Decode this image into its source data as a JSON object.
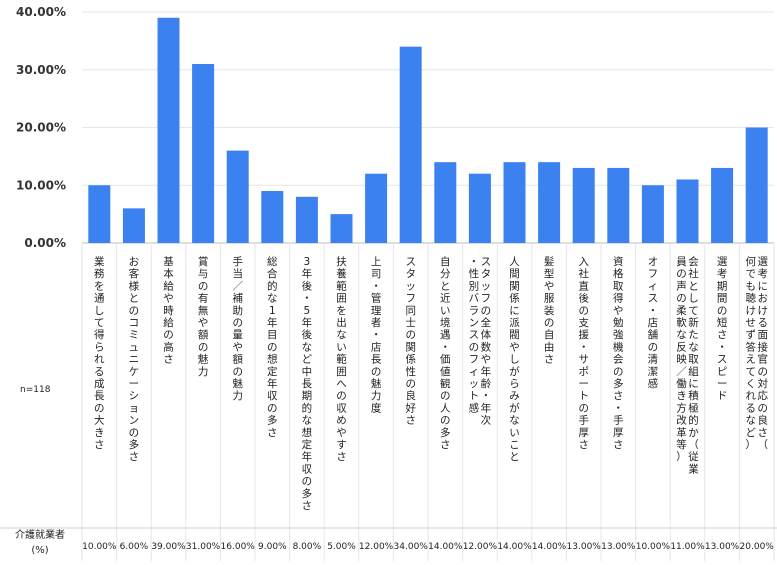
{
  "chart_data": {
    "type": "bar",
    "categories": [
      "業務を通して得られる成長の大きさ",
      "お客様とのコミュニケーションの多さ",
      "基本給や時給の高さ",
      "賞与の有無や額の魅力",
      "手当／補助の量や額の魅力",
      "総合的な1年目の想定年収の多さ",
      "3年後・5年後など中長期的な想定年収の多さ",
      "扶養範囲を出ない範囲への収めやすさ",
      "上司・管理者・店長の魅力度",
      "スタッフ同士の関係性の良好さ",
      "自分と近い境遇・価値観の人の多さ",
      "スタッフの全体数や年齢・年次・性別バランスのフィット感",
      "人間関係に派閥やしがらみがないこと",
      "髪型や服装の自由さ",
      "入社直後の支援・サポートの手厚さ",
      "資格取得や勉強機会の多さ・手厚さ",
      "オフィス・店舗の清潔感",
      "会社として新たな取組に積極的か（従業員の声の柔軟な反映／働き方改革等）",
      "選考期間の短さ・スピード",
      "選考における面接官の対応の良さ（何でも聴けせず答えてくれるなど）"
    ],
    "values": [
      10,
      6,
      39,
      31,
      16,
      9,
      8,
      5,
      12,
      34,
      14,
      12,
      14,
      14,
      13,
      13,
      10,
      11,
      13,
      20
    ],
    "value_labels": [
      "10.00%",
      "6.00%",
      "39.00%",
      "31.00%",
      "16.00%",
      "9.00%",
      "8.00%",
      "5.00%",
      "12.00%",
      "34.00%",
      "14.00%",
      "12.00%",
      "14.00%",
      "14.00%",
      "13.00%",
      "13.00%",
      "10.00%",
      "11.00%",
      "13.00%",
      "20.00%"
    ],
    "ylim": [
      0,
      40
    ],
    "yticks": [
      "0.00%",
      "10.00%",
      "20.00%",
      "30.00%",
      "40.00%"
    ],
    "grid": true,
    "bar_color": "#3b82f0",
    "sample_note": "n=118",
    "row_header": "介護就業者",
    "row_header_unit": "(%)"
  }
}
